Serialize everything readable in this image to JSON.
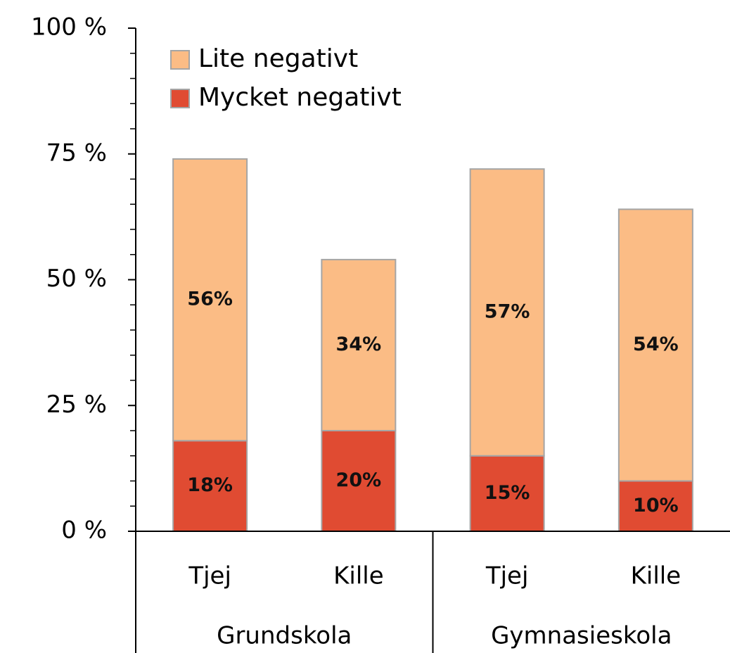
{
  "chart_data": {
    "type": "stacked_bar",
    "categories": [
      "Tjej",
      "Kille",
      "Tjej",
      "Kille"
    ],
    "groups": [
      {
        "name": "Grundskola",
        "size": 2
      },
      {
        "name": "Gymnasieskola",
        "size": 2
      }
    ],
    "series": [
      {
        "name": "Mycket negativt",
        "color": "#e04b32",
        "values": [
          18,
          20,
          15,
          10
        ],
        "value_labels": [
          "18%",
          "20%",
          "15%",
          "10%"
        ]
      },
      {
        "name": "Lite negativt",
        "color": "#fbbc85",
        "values": [
          56,
          34,
          57,
          54
        ],
        "value_labels": [
          "56%",
          "34%",
          "57%",
          "54%"
        ]
      }
    ],
    "ylim": [
      0,
      100
    ],
    "yticks": [
      {
        "value": 0,
        "label": "0 %"
      },
      {
        "value": 25,
        "label": "25 %"
      },
      {
        "value": 50,
        "label": "50 %"
      },
      {
        "value": 75,
        "label": "75 %"
      },
      {
        "value": 100,
        "label": "100 %"
      }
    ],
    "yminorticks": [
      5,
      10,
      15,
      20,
      30,
      35,
      40,
      45,
      55,
      60,
      65,
      70,
      80,
      85,
      90,
      95
    ],
    "legend": "top-left"
  }
}
